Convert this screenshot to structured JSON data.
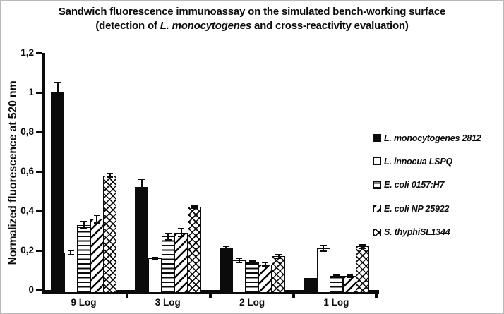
{
  "figure": {
    "title_line1": "Sandwich fluorescence immunoassay on the simulated bench-working surface",
    "title_line2_prefix": "(detection of ",
    "title_line2_italic": "L. monocytogenes",
    "title_line2_suffix": " and cross-reactivity evaluation)"
  },
  "chart_data": {
    "type": "bar",
    "title": "Sandwich fluorescence immunoassay on the simulated bench-working surface (detection of L. monocytogenes and cross-reactivity evaluation)",
    "xlabel": "",
    "ylabel": "Normalized fluorescence at 520 nm",
    "ylim": [
      0,
      1.2
    ],
    "yticks": [
      "0",
      "0,2",
      "0,4",
      "0,6",
      "0,8",
      "1",
      "1,2"
    ],
    "ytick_values": [
      0,
      0.2,
      0.4,
      0.6,
      0.8,
      1.0,
      1.2
    ],
    "grid": false,
    "legend_position": "right",
    "categories": [
      "9 Log",
      "3 Log",
      "2 Log",
      "1 Log"
    ],
    "series": [
      {
        "name": "L. monocytogenes 2812",
        "pattern": "solid-black",
        "values": [
          1.0,
          0.52,
          0.21,
          0.06
        ],
        "errors": [
          0.05,
          0.04,
          0.01,
          0
        ]
      },
      {
        "name": "L. innocua LSPQ",
        "pattern": "white",
        "values": [
          0.19,
          0.16,
          0.15,
          0.21
        ],
        "errors": [
          0.01,
          0.005,
          0.01,
          0.015
        ]
      },
      {
        "name": "E. coli 0157:H7",
        "pattern": "horizontal-stripes",
        "values": [
          0.33,
          0.27,
          0.14,
          0.07
        ],
        "errors": [
          0.015,
          0.015,
          0.005,
          0.005
        ]
      },
      {
        "name": "E. coli NP 25922",
        "pattern": "diagonal-stripes",
        "values": [
          0.36,
          0.29,
          0.13,
          0.07
        ],
        "errors": [
          0.02,
          0.02,
          0.01,
          0.005
        ]
      },
      {
        "name": "S. thyphiSL1344",
        "pattern": "crosshatch",
        "values": [
          0.58,
          0.42,
          0.17,
          0.22
        ],
        "errors": [
          0.01,
          0.005,
          0.01,
          0.01
        ]
      }
    ]
  }
}
